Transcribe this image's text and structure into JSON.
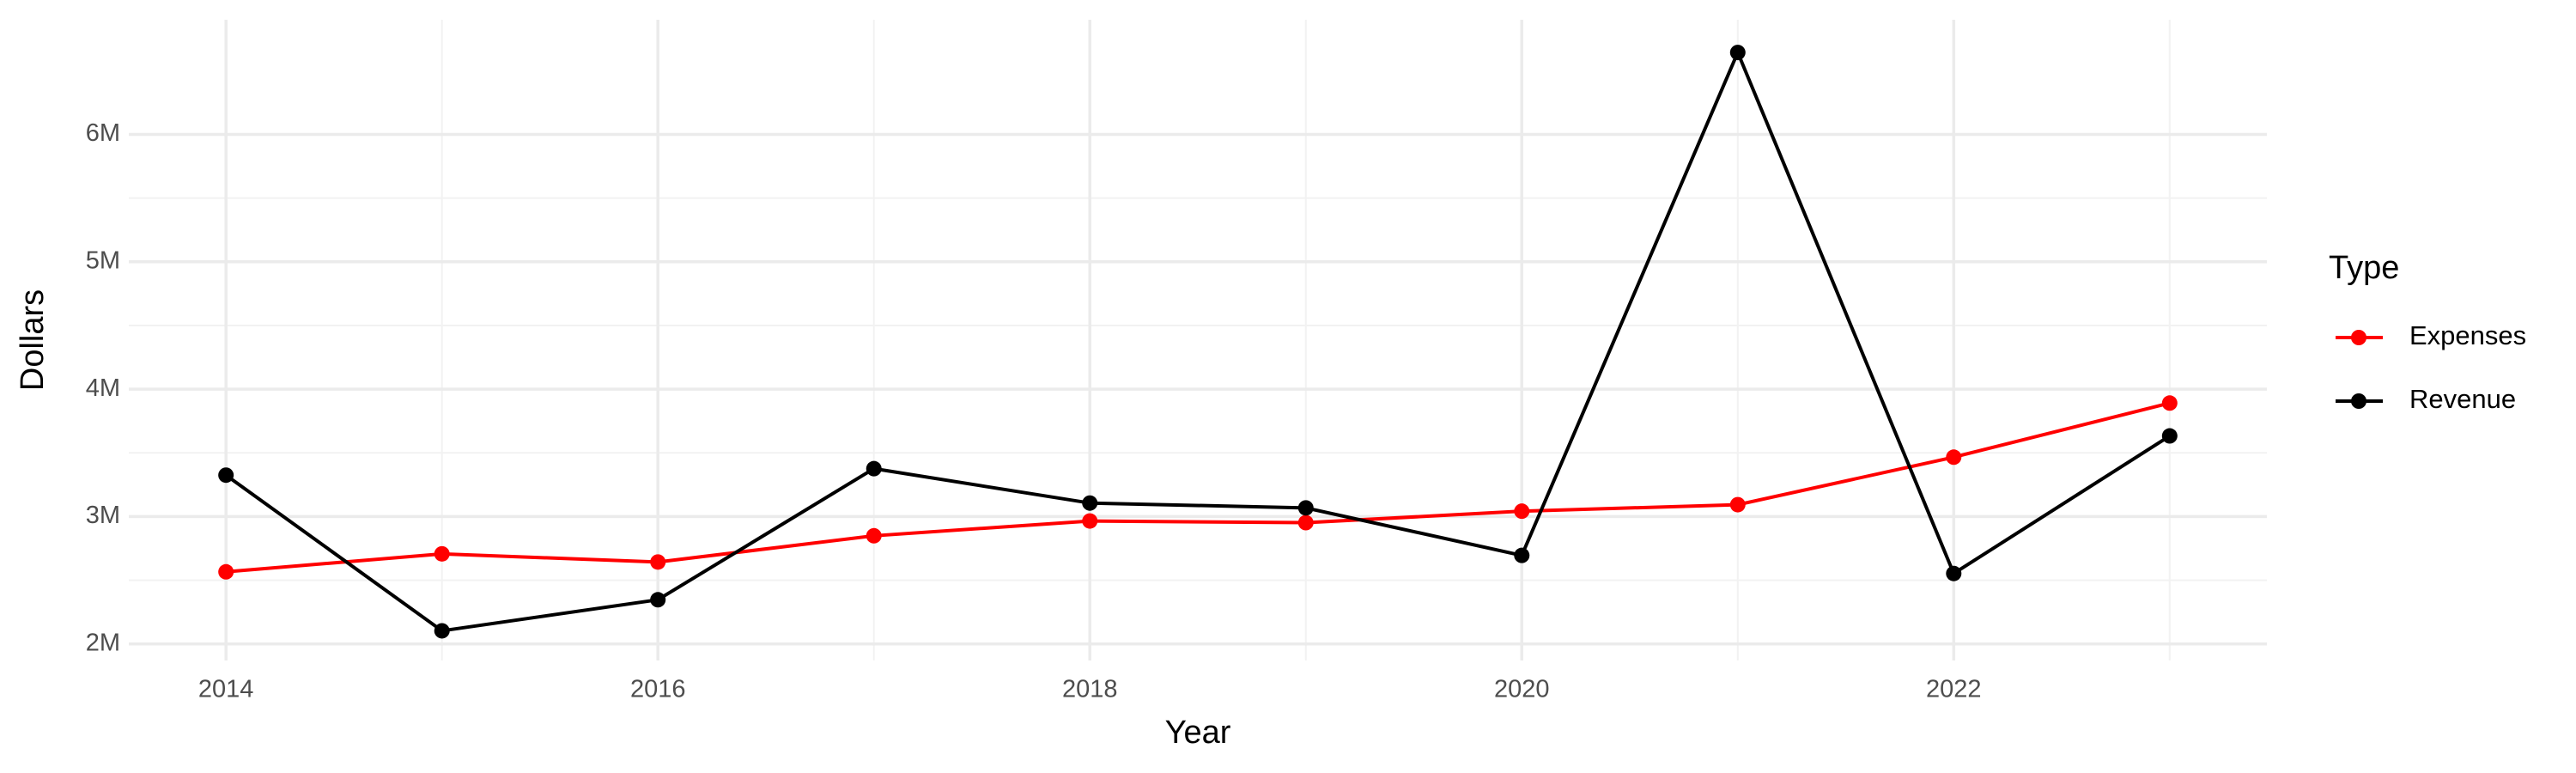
{
  "chart_data": {
    "type": "line",
    "x_label": "Year",
    "y_label": "Dollars",
    "legend_title": "Type",
    "x": [
      2014,
      2015,
      2016,
      2017,
      2018,
      2019,
      2020,
      2021,
      2022,
      2023
    ],
    "series": [
      {
        "name": "Expenses",
        "color": "#ff0000",
        "values": [
          2566000,
          2707000,
          2643000,
          2849000,
          2965000,
          2952000,
          3042000,
          3093000,
          3466000,
          3891000
        ]
      },
      {
        "name": "Revenue",
        "color": "#000000",
        "values": [
          3325000,
          2103000,
          2347000,
          3376000,
          3106000,
          3068000,
          2695000,
          6643000,
          2553000,
          3633000
        ]
      }
    ],
    "xlim": [
      2013.55,
      2023.45
    ],
    "xticks": [
      2014,
      2016,
      2018,
      2020,
      2022
    ],
    "ylim": [
      1870000,
      6900000
    ],
    "yticks": [
      {
        "value": 2000000,
        "label": "2M"
      },
      {
        "value": 3000000,
        "label": "3M"
      },
      {
        "value": 4000000,
        "label": "4M"
      },
      {
        "value": 5000000,
        "label": "5M"
      },
      {
        "value": 6000000,
        "label": "6M"
      }
    ],
    "grid": true,
    "minor_grid": true,
    "legend_position": "right"
  }
}
